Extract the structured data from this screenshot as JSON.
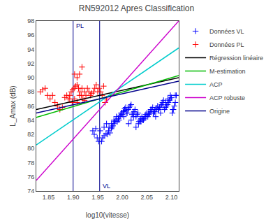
{
  "chart_data": {
    "type": "scatter",
    "title": "RN592012 Apres Classification",
    "xlabel": "log10(vitesse)",
    "ylabel": "L_Amax (dB)",
    "xlim": [
      1.825,
      2.115
    ],
    "ylim": [
      74,
      98
    ],
    "xticks": [
      1.85,
      {
        "value": 1.9,
        "label": "1.90"
      },
      1.95,
      {
        "value": 2.0,
        "label": "2.00"
      },
      2.05,
      {
        "value": 2.1,
        "label": "2.10"
      }
    ],
    "yticks": [
      74,
      76,
      78,
      80,
      82,
      84,
      86,
      88,
      90,
      92,
      94,
      96,
      98
    ],
    "grid": false,
    "legend": "right",
    "series": [
      {
        "name": "Données VL",
        "type": "scatter",
        "marker": "cross",
        "color": "#0000ff",
        "x": [
          1.96,
          1.963,
          1.967,
          1.97,
          1.972,
          1.975,
          1.978,
          1.979,
          1.981,
          1.983,
          1.985,
          1.987,
          1.99,
          1.992,
          1.994,
          1.996,
          1.998,
          2.0,
          2.002,
          2.004,
          2.005,
          2.007,
          2.008,
          2.01,
          2.012,
          2.014,
          2.016,
          2.018,
          2.02,
          2.022,
          2.024,
          2.026,
          2.028,
          2.03,
          2.032,
          2.034,
          2.036,
          2.038,
          2.04,
          2.042,
          2.044,
          2.046,
          2.048,
          2.05,
          2.052,
          2.054,
          2.056,
          2.058,
          2.06,
          2.062,
          2.064,
          2.066,
          2.068,
          2.07,
          2.072,
          2.074,
          2.076,
          2.078,
          2.08,
          2.082,
          2.084,
          2.086,
          2.088,
          2.09,
          2.092,
          2.094,
          2.096,
          2.098,
          2.1,
          2.102,
          2.104,
          2.106,
          2.108,
          2.11,
          1.94,
          1.943,
          1.946,
          1.949,
          1.952,
          1.955,
          1.958,
          1.963,
          1.968,
          1.973,
          1.978,
          1.983,
          1.988,
          1.993,
          1.998,
          2.003,
          2.008,
          2.013,
          2.018,
          2.023,
          2.028,
          2.033,
          2.038,
          2.043,
          2.048,
          2.053,
          2.058,
          2.063,
          2.068,
          2.073,
          2.078,
          2.083,
          2.088,
          2.093,
          2.098,
          2.103,
          2.108
        ],
        "values": [
          81.5,
          81.8,
          82.1,
          82.0,
          82.5,
          82.2,
          82.8,
          83.0,
          83.2,
          83.5,
          83.8,
          84.0,
          83.8,
          84.2,
          84.5,
          84.7,
          85.0,
          84.8,
          85.2,
          85.4,
          85.6,
          85.8,
          85.3,
          85.0,
          85.5,
          85.8,
          86.0,
          86.2,
          84.8,
          85.0,
          85.2,
          85.5,
          84.5,
          84.8,
          85.0,
          83.8,
          84.0,
          84.2,
          84.5,
          84.0,
          84.2,
          84.5,
          84.8,
          85.0,
          84.5,
          84.8,
          85.0,
          85.2,
          85.5,
          85.8,
          85.0,
          85.2,
          85.5,
          85.7,
          86.0,
          85.5,
          85.8,
          86.0,
          86.2,
          86.5,
          86.8,
          85.5,
          85.8,
          86.0,
          86.2,
          86.5,
          86.8,
          87.0,
          87.2,
          85.0,
          85.5,
          86.0,
          86.5,
          87.5,
          82.5,
          82.0,
          82.8,
          81.5,
          81.0,
          82.5,
          81.0,
          83.0,
          83.5,
          83.0,
          83.5,
          84.0,
          84.5,
          84.0,
          85.0,
          84.5,
          85.0,
          83.5,
          84.0,
          84.5,
          83.0,
          83.5,
          83.8,
          84.0,
          84.5,
          85.0,
          85.5,
          85.0,
          84.5,
          85.5,
          85.0,
          86.0,
          86.5,
          87.0,
          87.5,
          85.5,
          87.5
        ]
      },
      {
        "name": "Données PL",
        "type": "scatter",
        "marker": "cross",
        "color": "#ff0000",
        "x": [
          1.883,
          1.887,
          1.89,
          1.893,
          1.896,
          1.899,
          1.902,
          1.905,
          1.908,
          1.911,
          1.914,
          1.917,
          1.92,
          1.923,
          1.926,
          1.929,
          1.932,
          1.935,
          1.938,
          1.941,
          1.944,
          1.947,
          1.95,
          1.833,
          1.838,
          1.843,
          1.848,
          1.853,
          1.858,
          1.863,
          1.868,
          1.873,
          1.878,
          1.953,
          1.956,
          1.959,
          1.962,
          1.965,
          1.968,
          1.903,
          1.908,
          1.913,
          1.918,
          1.923,
          1.893,
          1.898,
          1.903,
          1.908,
          1.913,
          1.918
        ],
        "values": [
          87.2,
          87.5,
          87.0,
          87.5,
          88.0,
          88.3,
          88.5,
          88.8,
          89.0,
          88.5,
          88.0,
          87.5,
          87.0,
          86.8,
          87.5,
          88.5,
          88.0,
          87.5,
          87.8,
          88.0,
          88.5,
          89.0,
          88.0,
          88.0,
          88.3,
          88.5,
          87.5,
          87.0,
          87.5,
          86.5,
          86.0,
          85.5,
          85.8,
          88.5,
          88.0,
          87.5,
          88.8,
          86.5,
          87.0,
          90.5,
          90.0,
          90.5,
          91.5,
          88.0,
          87.0,
          86.5,
          87.0,
          86.5,
          87.5,
          88.5
        ]
      },
      {
        "name": "Régression linéaire",
        "type": "line",
        "line_style": "solid",
        "color": "#000000",
        "x": [
          1.825,
          2.115
        ],
        "values": [
          85.5,
          90.0
        ]
      },
      {
        "name": "M-estimation",
        "type": "line",
        "line_style": "solid",
        "color": "#00bb00",
        "x": [
          1.825,
          2.115
        ],
        "values": [
          84.4,
          90.3
        ]
      },
      {
        "name": "ACP",
        "type": "line",
        "line_style": "solid",
        "color": "#00cccc",
        "x": [
          1.825,
          2.115
        ],
        "values": [
          80.5,
          94.2
        ]
      },
      {
        "name": "ACP robuste",
        "type": "line",
        "line_style": "solid",
        "color": "#cc00cc",
        "x": [
          1.825,
          2.115
        ],
        "values": [
          75.5,
          98.0
        ]
      },
      {
        "name": "Origine",
        "type": "line",
        "line_style": "solid",
        "color": "#00008b",
        "x": [
          1.825,
          2.115
        ],
        "values": [
          85.0,
          89.5
        ]
      }
    ],
    "vlines": [
      {
        "x": 1.9,
        "label": "PL",
        "color": "#00008b"
      },
      {
        "x": 1.954,
        "label": "VL",
        "color": "#00008b"
      }
    ]
  }
}
